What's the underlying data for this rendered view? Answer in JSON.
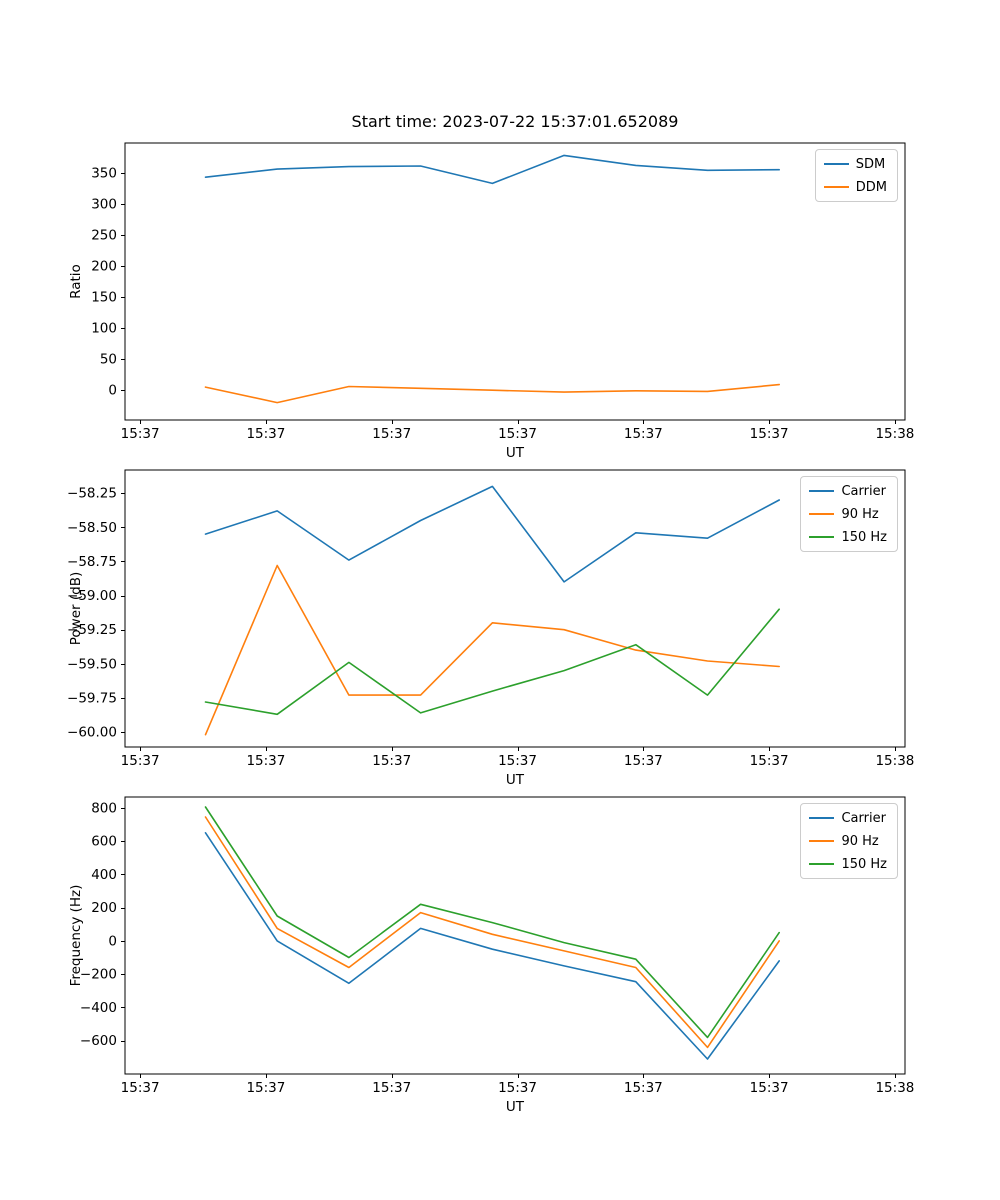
{
  "figure_title": "Start time: 2023-07-22 15:37:01.652089",
  "colors": {
    "blue": "#1f77b4",
    "orange": "#ff7f0e",
    "green": "#2ca02c"
  },
  "chart_data": [
    {
      "type": "line",
      "title": "",
      "xlabel": "UT",
      "ylabel": "Ratio",
      "xlim": [
        -1.2,
        60.8
      ],
      "ylim": [
        -48,
        398
      ],
      "x": [
        5.2,
        10.9,
        16.6,
        22.3,
        28.0,
        33.7,
        39.4,
        45.1,
        50.8
      ],
      "xticks": [
        0,
        10,
        20,
        30,
        40,
        50,
        60
      ],
      "xticklabels": [
        "15:37",
        "15:37",
        "15:37",
        "15:37",
        "15:37",
        "15:37",
        "15:38"
      ],
      "yticks": [
        0,
        50,
        100,
        150,
        200,
        250,
        300,
        350
      ],
      "yticklabels": [
        "0",
        "50",
        "100",
        "150",
        "200",
        "250",
        "300",
        "350"
      ],
      "legend_loc": "upper right",
      "grid": false,
      "series": [
        {
          "name": "SDM",
          "color": "#1f77b4",
          "values": [
            343,
            356,
            360,
            361,
            333,
            378,
            362,
            354,
            355
          ]
        },
        {
          "name": "DDM",
          "color": "#ff7f0e",
          "values": [
            5,
            -20,
            6,
            3,
            0,
            -3,
            -1,
            -2,
            9
          ]
        }
      ]
    },
    {
      "type": "line",
      "title": "",
      "xlabel": "UT",
      "ylabel": "Power (dB)",
      "xlim": [
        -1.2,
        60.8
      ],
      "ylim": [
        -60.11,
        -58.08
      ],
      "x": [
        5.2,
        10.9,
        16.6,
        22.3,
        28.0,
        33.7,
        39.4,
        45.1,
        50.8
      ],
      "xticks": [
        0,
        10,
        20,
        30,
        40,
        50,
        60
      ],
      "xticklabels": [
        "15:37",
        "15:37",
        "15:37",
        "15:37",
        "15:37",
        "15:37",
        "15:38"
      ],
      "yticks": [
        -60.0,
        -59.75,
        -59.5,
        -59.25,
        -59.0,
        -58.75,
        -58.5,
        -58.25
      ],
      "yticklabels": [
        "−60.00",
        "−59.75",
        "−59.50",
        "−59.25",
        "−59.00",
        "−58.75",
        "−58.50",
        "−58.25"
      ],
      "legend_loc": "upper right",
      "grid": false,
      "series": [
        {
          "name": "Carrier",
          "color": "#1f77b4",
          "values": [
            -58.55,
            -58.38,
            -58.74,
            -58.45,
            -58.2,
            -58.9,
            -58.54,
            -58.58,
            -58.3
          ]
        },
        {
          "name": "90 Hz",
          "color": "#ff7f0e",
          "values": [
            -60.02,
            -58.78,
            -59.73,
            -59.73,
            -59.2,
            -59.25,
            -59.4,
            -59.48,
            -59.52
          ]
        },
        {
          "name": "150 Hz",
          "color": "#2ca02c",
          "values": [
            -59.78,
            -59.87,
            -59.49,
            -59.86,
            -59.7,
            -59.55,
            -59.36,
            -59.73,
            -59.1
          ]
        }
      ]
    },
    {
      "type": "line",
      "title": "",
      "xlabel": "UT",
      "ylabel": "Frequency (Hz)",
      "xlim": [
        -1.2,
        60.8
      ],
      "ylim": [
        -800,
        865
      ],
      "x": [
        5.2,
        10.9,
        16.6,
        22.3,
        28.0,
        33.7,
        39.4,
        45.1,
        50.8
      ],
      "xticks": [
        0,
        10,
        20,
        30,
        40,
        50,
        60
      ],
      "xticklabels": [
        "15:37",
        "15:37",
        "15:37",
        "15:37",
        "15:37",
        "15:37",
        "15:38"
      ],
      "yticks": [
        -600,
        -400,
        -200,
        0,
        200,
        400,
        600,
        800
      ],
      "yticklabels": [
        "−600",
        "−400",
        "−200",
        "0",
        "200",
        "400",
        "600",
        "800"
      ],
      "legend_loc": "upper right",
      "grid": false,
      "series": [
        {
          "name": "Carrier",
          "color": "#1f77b4",
          "values": [
            650,
            0,
            -255,
            75,
            -50,
            -150,
            -245,
            -710,
            -120
          ]
        },
        {
          "name": "90 Hz",
          "color": "#ff7f0e",
          "values": [
            745,
            75,
            -160,
            170,
            40,
            -60,
            -160,
            -640,
            0
          ]
        },
        {
          "name": "150 Hz",
          "color": "#2ca02c",
          "values": [
            805,
            150,
            -100,
            220,
            110,
            -10,
            -110,
            -580,
            50
          ]
        }
      ]
    }
  ]
}
